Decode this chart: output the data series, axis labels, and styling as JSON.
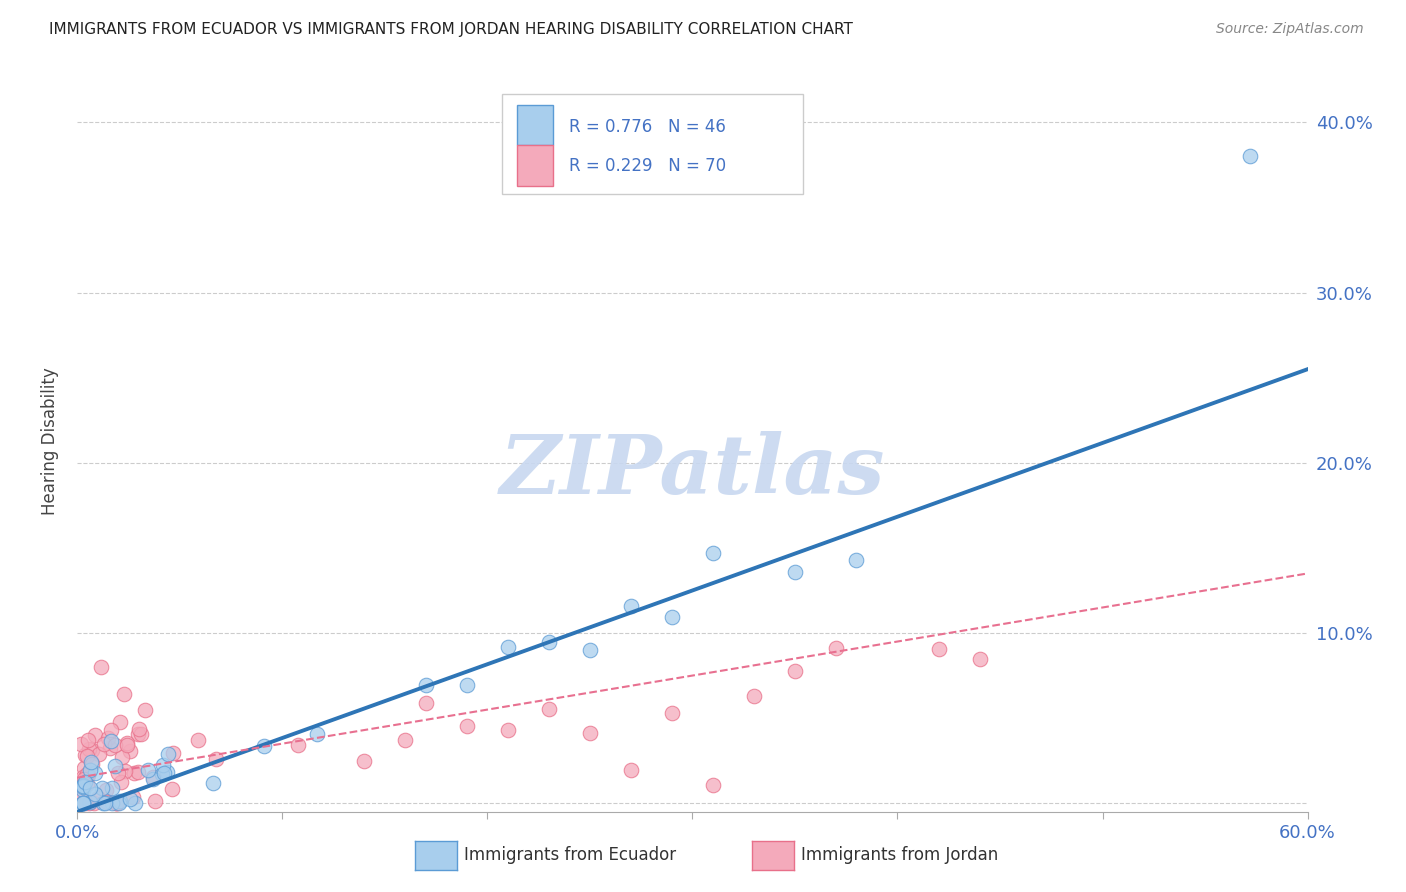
{
  "title": "IMMIGRANTS FROM ECUADOR VS IMMIGRANTS FROM JORDAN HEARING DISABILITY CORRELATION CHART",
  "source": "Source: ZipAtlas.com",
  "ylabel": "Hearing Disability",
  "ecuador_R": 0.776,
  "ecuador_N": 46,
  "jordan_R": 0.229,
  "jordan_N": 70,
  "ecuador_color": "#A8CEED",
  "jordan_color": "#F4AABB",
  "ecuador_edge_color": "#5B9BD5",
  "jordan_edge_color": "#E8708A",
  "ecuador_line_color": "#2E75B6",
  "jordan_line_color": "#E87090",
  "watermark_color": "#C8D8F0",
  "grid_color": "#CCCCCC",
  "tick_color": "#4472C4",
  "xlim": [
    0.0,
    0.6
  ],
  "ylim": [
    -0.005,
    0.43
  ],
  "xticks": [
    0.0,
    0.1,
    0.2,
    0.3,
    0.4,
    0.5,
    0.6
  ],
  "yticks": [
    0.0,
    0.1,
    0.2,
    0.3,
    0.4
  ],
  "ec_line_x0": 0.0,
  "ec_line_y0": -0.005,
  "ec_line_x1": 0.6,
  "ec_line_y1": 0.255,
  "jo_line_x0": 0.0,
  "jo_line_y0": 0.015,
  "jo_line_x1": 0.6,
  "jo_line_y1": 0.135
}
